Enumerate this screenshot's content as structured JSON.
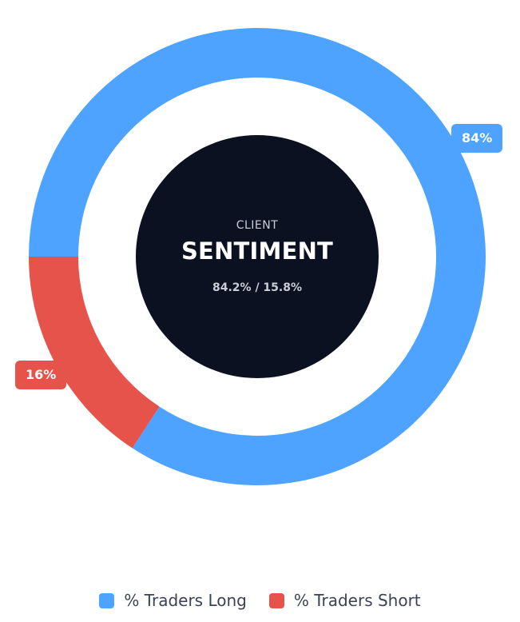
{
  "chart_data": {
    "type": "pie",
    "categories": [
      "% Traders Long",
      "% Traders Short"
    ],
    "values": [
      84.2,
      15.8
    ],
    "slice_labels": [
      "84%",
      "16%"
    ],
    "colors": [
      "#4da3ff",
      "#e5534b"
    ],
    "legend": "bottom"
  },
  "center": {
    "small": "CLIENT",
    "title": "SENTIMENT",
    "ratio": "84.2% / 15.8%"
  },
  "center_color": "#0b1120"
}
